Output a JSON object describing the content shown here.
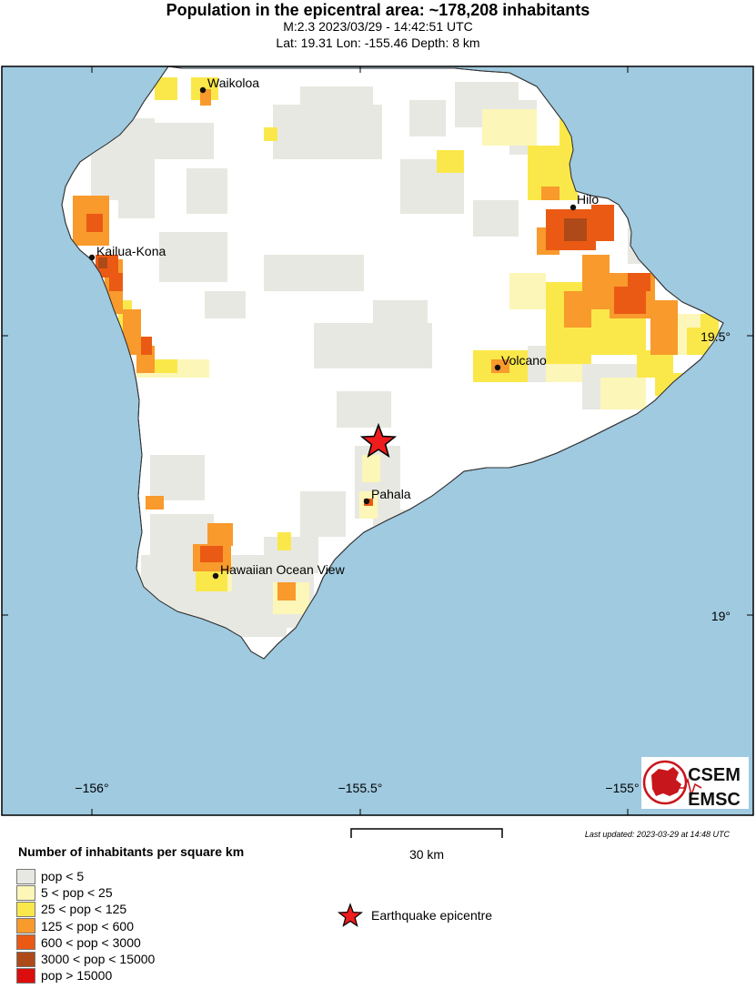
{
  "header": {
    "title": "Population in the epicentral area: ~178,208 inhabitants",
    "subtitle_event": "M:2.3 2023/03/29 - 14:42:51 UTC",
    "subtitle_location": "Lat: 19.31 Lon: -155.46 Depth: 8 km"
  },
  "map": {
    "longitude_ticks": [
      "−156°",
      "−155.5°",
      "−155°"
    ],
    "latitude_ticks": [
      "19.5°",
      "19°"
    ],
    "places": [
      "Waikoloa",
      "Kailua-Kona",
      "Hilo",
      "Volcano",
      "Pahala",
      "Hawaiian Ocean View"
    ],
    "colors": {
      "ocean": "#9fcae0",
      "land": "#ffffff",
      "epicenter": "#ee1c1c"
    }
  },
  "logo": {
    "line1": "CSEM",
    "line2": "EMSC"
  },
  "last_updated": "Last updated: 2023-03-29 at 14:48 UTC",
  "scale_bar": {
    "label": "30 km"
  },
  "legend": {
    "title": "Number of inhabitants per square km",
    "items": [
      {
        "label": "pop < 5",
        "color": "#e8e8e2"
      },
      {
        "label": "5 < pop < 25",
        "color": "#fcf6b8"
      },
      {
        "label": "25 < pop < 125",
        "color": "#fae84a"
      },
      {
        "label": "125 < pop < 600",
        "color": "#f89a2c"
      },
      {
        "label": "600 < pop < 3000",
        "color": "#ea5a14"
      },
      {
        "label": "3000 < pop < 15000",
        "color": "#ad4a17"
      },
      {
        "label": "pop > 15000",
        "color": "#dc0d0d"
      }
    ],
    "epicentre_label": "Earthquake epicentre"
  }
}
